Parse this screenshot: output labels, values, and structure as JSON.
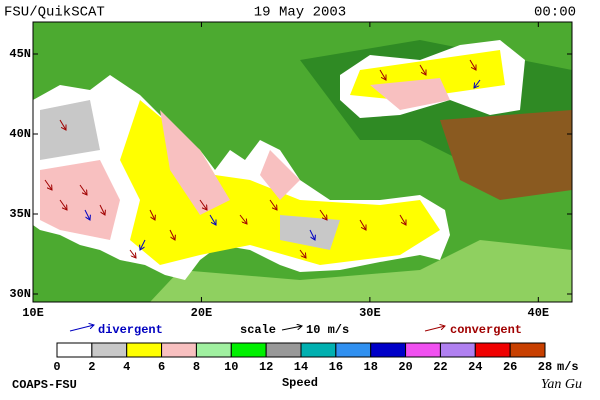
{
  "header": {
    "source": "FSU/QuikSCAT",
    "date": "19 May 2003",
    "time": "00:00"
  },
  "map": {
    "lon_range": [
      10,
      42
    ],
    "lat_range": [
      29.5,
      47
    ],
    "lat_ticks": [
      {
        "value": 30,
        "label": "30N"
      },
      {
        "value": 35,
        "label": "35N"
      },
      {
        "value": 40,
        "label": "40N"
      },
      {
        "value": 45,
        "label": "45N"
      }
    ],
    "lon_ticks": [
      {
        "value": 10,
        "label": "10E"
      },
      {
        "value": 20,
        "label": "20E"
      },
      {
        "value": 30,
        "label": "30E"
      },
      {
        "value": 40,
        "label": "40E"
      }
    ]
  },
  "legend": {
    "divergent": "divergent",
    "scale": "scale",
    "scale_value": "10 m/s",
    "convergent": "convergent"
  },
  "colorbar": {
    "title": "Speed",
    "unit": "m/s",
    "ticks": [
      0,
      2,
      4,
      6,
      8,
      10,
      12,
      14,
      16,
      18,
      20,
      22,
      24,
      26,
      28
    ],
    "colors": [
      "#ffffff",
      "#c8c8c8",
      "#ffff00",
      "#f8c0c0",
      "#a0f0a0",
      "#00f000",
      "#989898",
      "#00b0b0",
      "#3090f0",
      "#0000c8",
      "#f050f0",
      "#b080f0",
      "#f00000",
      "#c84000",
      "#000000"
    ]
  },
  "footer": {
    "left": "COAPS-FSU",
    "right": "Yan Gu"
  }
}
